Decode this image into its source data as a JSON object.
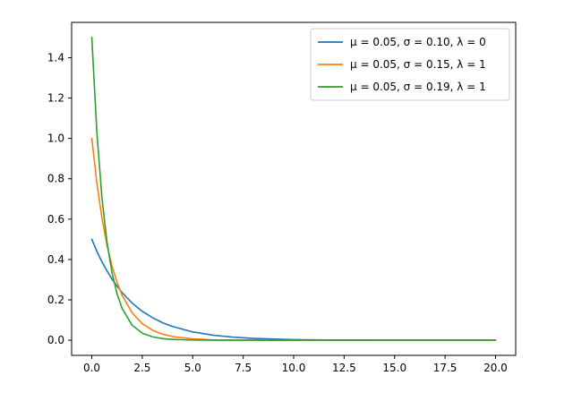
{
  "chart_data": {
    "type": "line",
    "title": "",
    "xlabel": "",
    "ylabel": "",
    "xlim": [
      -1,
      21
    ],
    "ylim": [
      -0.075,
      1.575
    ],
    "xticks": [
      0.0,
      2.5,
      5.0,
      7.5,
      10.0,
      12.5,
      15.0,
      17.5,
      20.0
    ],
    "xtick_labels": [
      "0.0",
      "2.5",
      "5.0",
      "7.5",
      "10.0",
      "12.5",
      "15.0",
      "17.5",
      "20.0"
    ],
    "yticks": [
      0.0,
      0.2,
      0.4,
      0.6,
      0.8,
      1.0,
      1.2,
      1.4
    ],
    "ytick_labels": [
      "0.0",
      "0.2",
      "0.4",
      "0.6",
      "0.8",
      "1.0",
      "1.2",
      "1.4"
    ],
    "grid": false,
    "legend_position": "top-right",
    "x": [
      0,
      0.25,
      0.5,
      0.75,
      1,
      1.25,
      1.5,
      2,
      2.5,
      3,
      3.5,
      4,
      5,
      6,
      7,
      8,
      10,
      12,
      15,
      20
    ],
    "series": [
      {
        "name": "μ = 0.05,  σ = 0.10,  λ = 0",
        "color": "#1f77b4",
        "values": [
          0.5,
          0.441,
          0.389,
          0.344,
          0.303,
          0.268,
          0.236,
          0.184,
          0.143,
          0.112,
          0.087,
          0.068,
          0.041,
          0.025,
          0.015,
          0.009,
          0.003,
          0.001,
          0.0003,
          0.0
        ]
      },
      {
        "name": "μ = 0.05,  σ = 0.15,  λ = 1",
        "color": "#ff7f0e",
        "values": [
          1.0,
          0.779,
          0.607,
          0.472,
          0.368,
          0.287,
          0.223,
          0.135,
          0.082,
          0.05,
          0.03,
          0.018,
          0.007,
          0.002,
          0.001,
          0.0003,
          0.0,
          0.0,
          0.0,
          0.0
        ]
      },
      {
        "name": "μ = 0.05,  σ = 0.19,  λ = 1",
        "color": "#2ca02c",
        "values": [
          1.5,
          1.031,
          0.708,
          0.487,
          0.335,
          0.23,
          0.158,
          0.074,
          0.035,
          0.017,
          0.008,
          0.004,
          0.001,
          0.0,
          0.0,
          0.0,
          0.0,
          0.0,
          0.0,
          0.0
        ]
      }
    ]
  }
}
